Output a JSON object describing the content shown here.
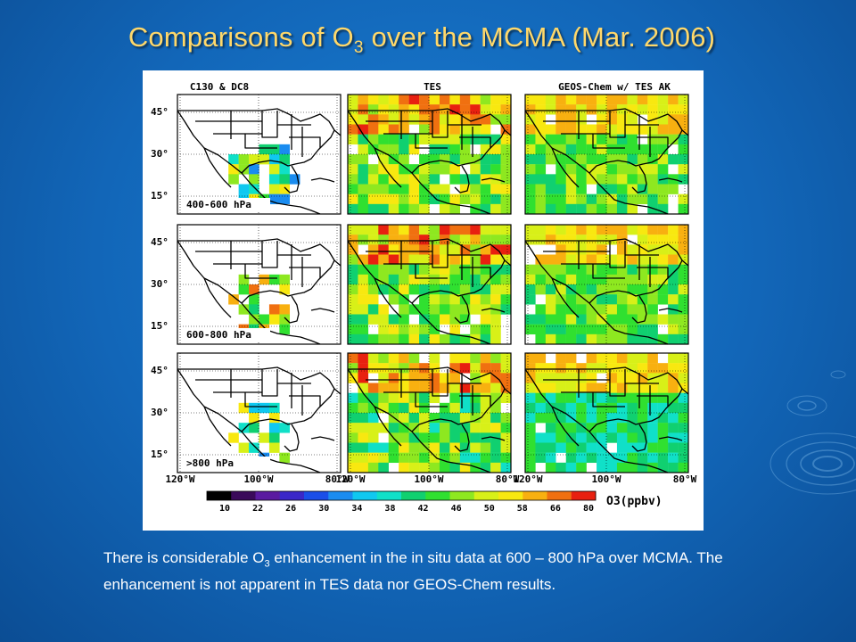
{
  "slide": {
    "title_main": "Comparisons of O",
    "title_sub": "3",
    "title_rest": " over the MCMA (Mar. 2006)"
  },
  "figure": {
    "column_titles": [
      "C130 & DC8",
      "TES",
      "GEOS-Chem w/ TES AK"
    ],
    "row_labels": [
      "400-600 hPa",
      "600-800 hPa",
      ">800 hPa"
    ],
    "lat_ticks": [
      "45°",
      "30°",
      "15°"
    ],
    "lon_ticks": [
      "120°W",
      "100°W",
      "80°W"
    ],
    "colorbar": {
      "ticks": [
        "10",
        "22",
        "26",
        "30",
        "34",
        "38",
        "42",
        "46",
        "50",
        "58",
        "66",
        "80"
      ],
      "label": "O3(ppbv)",
      "colors": [
        "#000000",
        "#3a0a5a",
        "#5a1aa0",
        "#3a28c8",
        "#1a4ee8",
        "#1a8cf0",
        "#10c8f0",
        "#10e0c8",
        "#10d070",
        "#30e030",
        "#8ee820",
        "#d8f018",
        "#f8e810",
        "#f8b010",
        "#f07010",
        "#e82010"
      ]
    }
  },
  "caption": {
    "part1": "There is considerable O",
    "sub": "3",
    "part2": " enhancement in the in situ data at 600 – 800 hPa over MCMA. The enhancement is not apparent in TES data nor GEOS-Chem results."
  }
}
